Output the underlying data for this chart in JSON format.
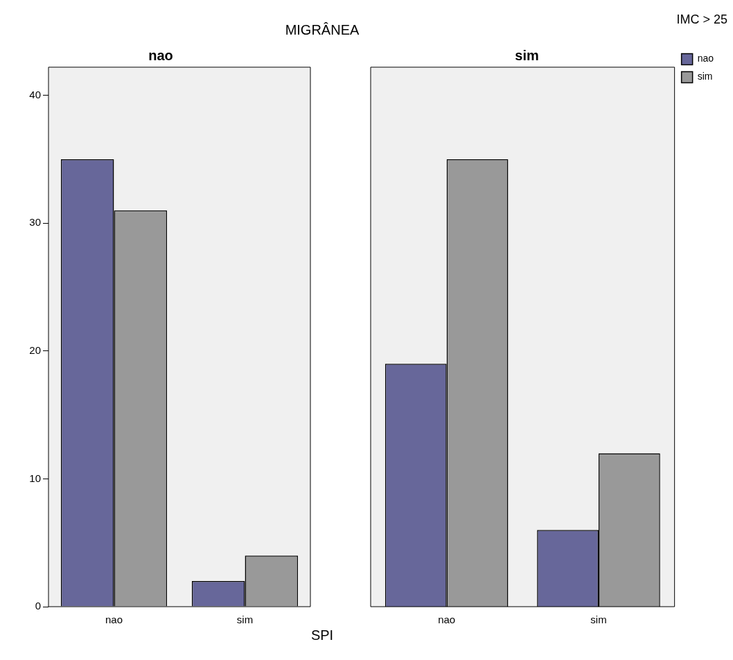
{
  "chart_data": [
    {
      "type": "bar",
      "title": "nao",
      "annotations": [
        "MIGRÂNEA"
      ],
      "xlabel": "SPI",
      "categories": [
        "nao",
        "sim"
      ],
      "series": [
        {
          "color": "#67679a",
          "values": [
            35,
            2
          ]
        },
        {
          "color": "#999999",
          "values": [
            31,
            4
          ]
        }
      ],
      "ylim": [
        0,
        42.2
      ],
      "yticks": [
        0,
        10,
        20,
        30,
        40
      ],
      "legend": false
    },
    {
      "type": "bar",
      "title": "sim",
      "categories": [
        "nao",
        "sim"
      ],
      "series": [
        {
          "name": "nao",
          "color": "#67679a",
          "values": [
            19,
            6
          ]
        },
        {
          "name": "sim",
          "color": "#999999",
          "values": [
            35,
            12
          ]
        }
      ],
      "ylim": [
        0,
        42.2
      ],
      "yticks": [
        0,
        10,
        20,
        30,
        40
      ],
      "tick_labels": "x",
      "legend": "right",
      "legend_title": "IMC > 25"
    }
  ]
}
